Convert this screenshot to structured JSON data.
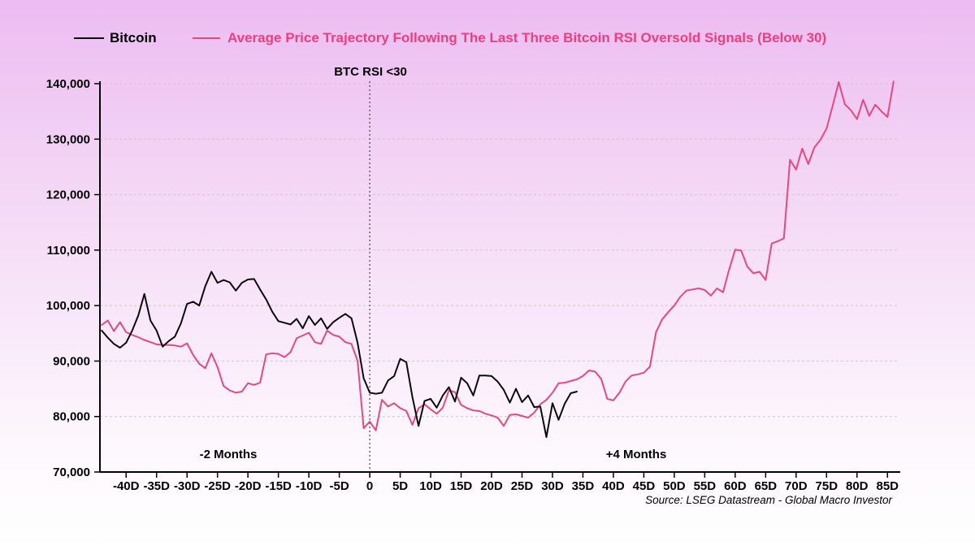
{
  "legend": {
    "bitcoin_label": "Bitcoin",
    "average_label": "Average Price Trajectory Following The Last Three Bitcoin RSI Oversold Signals (Below 30)"
  },
  "annotations": {
    "rsi_threshold": "BTC RSI <30",
    "minus_two_months": "-2 Months",
    "plus_four_months": "+4 Months",
    "source": "Source: LSEG Datastream - Global Macro Investor"
  },
  "colors": {
    "bitcoin_line": "#0b0b0b",
    "average_line": "#e5497f",
    "average_label_text": "#f03e7c",
    "grid": "#c9c9c9",
    "event_line": "#444444",
    "axis": "#000000"
  },
  "chart_data": {
    "type": "line",
    "title": "Average Price Trajectory Following The Last Three Bitcoin RSI Oversold Signals (Below 30)",
    "x_unit": "trading days relative to RSI oversold signal",
    "xlim": [
      -44.3,
      86.7
    ],
    "ylim": [
      70000,
      140000
    ],
    "grid": "horizontal-dashed",
    "legend_position": "top",
    "event_line_x": 0,
    "x_ticks": [
      -40,
      -35,
      -30,
      -25,
      -20,
      -15,
      -10,
      -5,
      0,
      5,
      10,
      15,
      20,
      25,
      30,
      35,
      40,
      45,
      50,
      55,
      60,
      65,
      70,
      75,
      80,
      85
    ],
    "x_tick_labels": [
      "-40D",
      "-35D",
      "-30D",
      "-25D",
      "-20D",
      "-15D",
      "-10D",
      "-5D",
      "0",
      "5D",
      "10D",
      "15D",
      "20D",
      "25D",
      "30D",
      "35D",
      "40D",
      "45D",
      "50D",
      "55D",
      "60D",
      "65D",
      "70D",
      "75D",
      "80D",
      "85D"
    ],
    "y_ticks": [
      70000,
      80000,
      90000,
      100000,
      110000,
      120000,
      130000,
      140000
    ],
    "y_tick_labels": [
      "70,000",
      "80,000",
      "90,000",
      "100,000",
      "110,000",
      "120,000",
      "130,000",
      "140,000"
    ],
    "series": [
      {
        "name": "Bitcoin",
        "color": "#0b0b0b",
        "start_day": -44,
        "step_days": 1,
        "values": [
          95500,
          94200,
          93100,
          92400,
          93300,
          95500,
          98200,
          102100,
          97300,
          95500,
          92600,
          93600,
          94400,
          96800,
          100300,
          100700,
          100000,
          103500,
          106100,
          104100,
          104600,
          104200,
          102700,
          104100,
          104700,
          104800,
          102900,
          101100,
          98900,
          97200,
          96900,
          96600,
          97600,
          95900,
          98100,
          96500,
          97700,
          95800,
          97000,
          97800,
          98500,
          97700,
          93300,
          86900,
          84300,
          84100,
          84300,
          86500,
          87300,
          90400,
          89800,
          83500,
          78300,
          82800,
          83200,
          81600,
          83800,
          85300,
          82700,
          87000,
          86000,
          83800,
          87400,
          87400,
          87300,
          86300,
          84800,
          82500,
          85000,
          82600,
          83800,
          81700,
          81800,
          76300,
          82400,
          79400,
          82300,
          84200,
          84500
        ]
      },
      {
        "name": "Average Price Trajectory Following The Last Three Bitcoin RSI Oversold Signals (Below 30)",
        "color": "#e5497f",
        "start_day": -44,
        "step_days": 1,
        "values": [
          96500,
          97300,
          95400,
          97000,
          95200,
          94700,
          94300,
          93800,
          93400,
          93000,
          92900,
          92900,
          92800,
          92600,
          93200,
          91100,
          89500,
          88700,
          91400,
          88900,
          85500,
          84700,
          84300,
          84500,
          86000,
          85700,
          86100,
          91200,
          91400,
          91300,
          90700,
          91600,
          94100,
          94600,
          95100,
          93400,
          93100,
          95500,
          94700,
          94400,
          93400,
          93100,
          90000,
          77900,
          79100,
          77500,
          83000,
          81800,
          82400,
          81500,
          81000,
          78500,
          81500,
          82200,
          81300,
          80500,
          81600,
          84700,
          84400,
          82100,
          81500,
          81100,
          81000,
          80500,
          80200,
          79800,
          78300,
          80300,
          80400,
          80100,
          79800,
          80700,
          82200,
          83000,
          84300,
          86000,
          86100,
          86400,
          86700,
          87300,
          88300,
          88100,
          86800,
          83200,
          82900,
          84300,
          86300,
          87400,
          87600,
          87900,
          89000,
          95200,
          97500,
          98800,
          100000,
          101600,
          102700,
          102900,
          103100,
          102800,
          101800,
          103100,
          102400,
          106500,
          110100,
          109900,
          107000,
          105800,
          106100,
          104600,
          111200,
          111600,
          112100,
          126300,
          124500,
          128300,
          125500,
          128500,
          129900,
          131900,
          136000,
          140300,
          136300,
          135200,
          133600,
          137100,
          134200,
          136200,
          135000,
          134000,
          140400
        ]
      }
    ]
  }
}
